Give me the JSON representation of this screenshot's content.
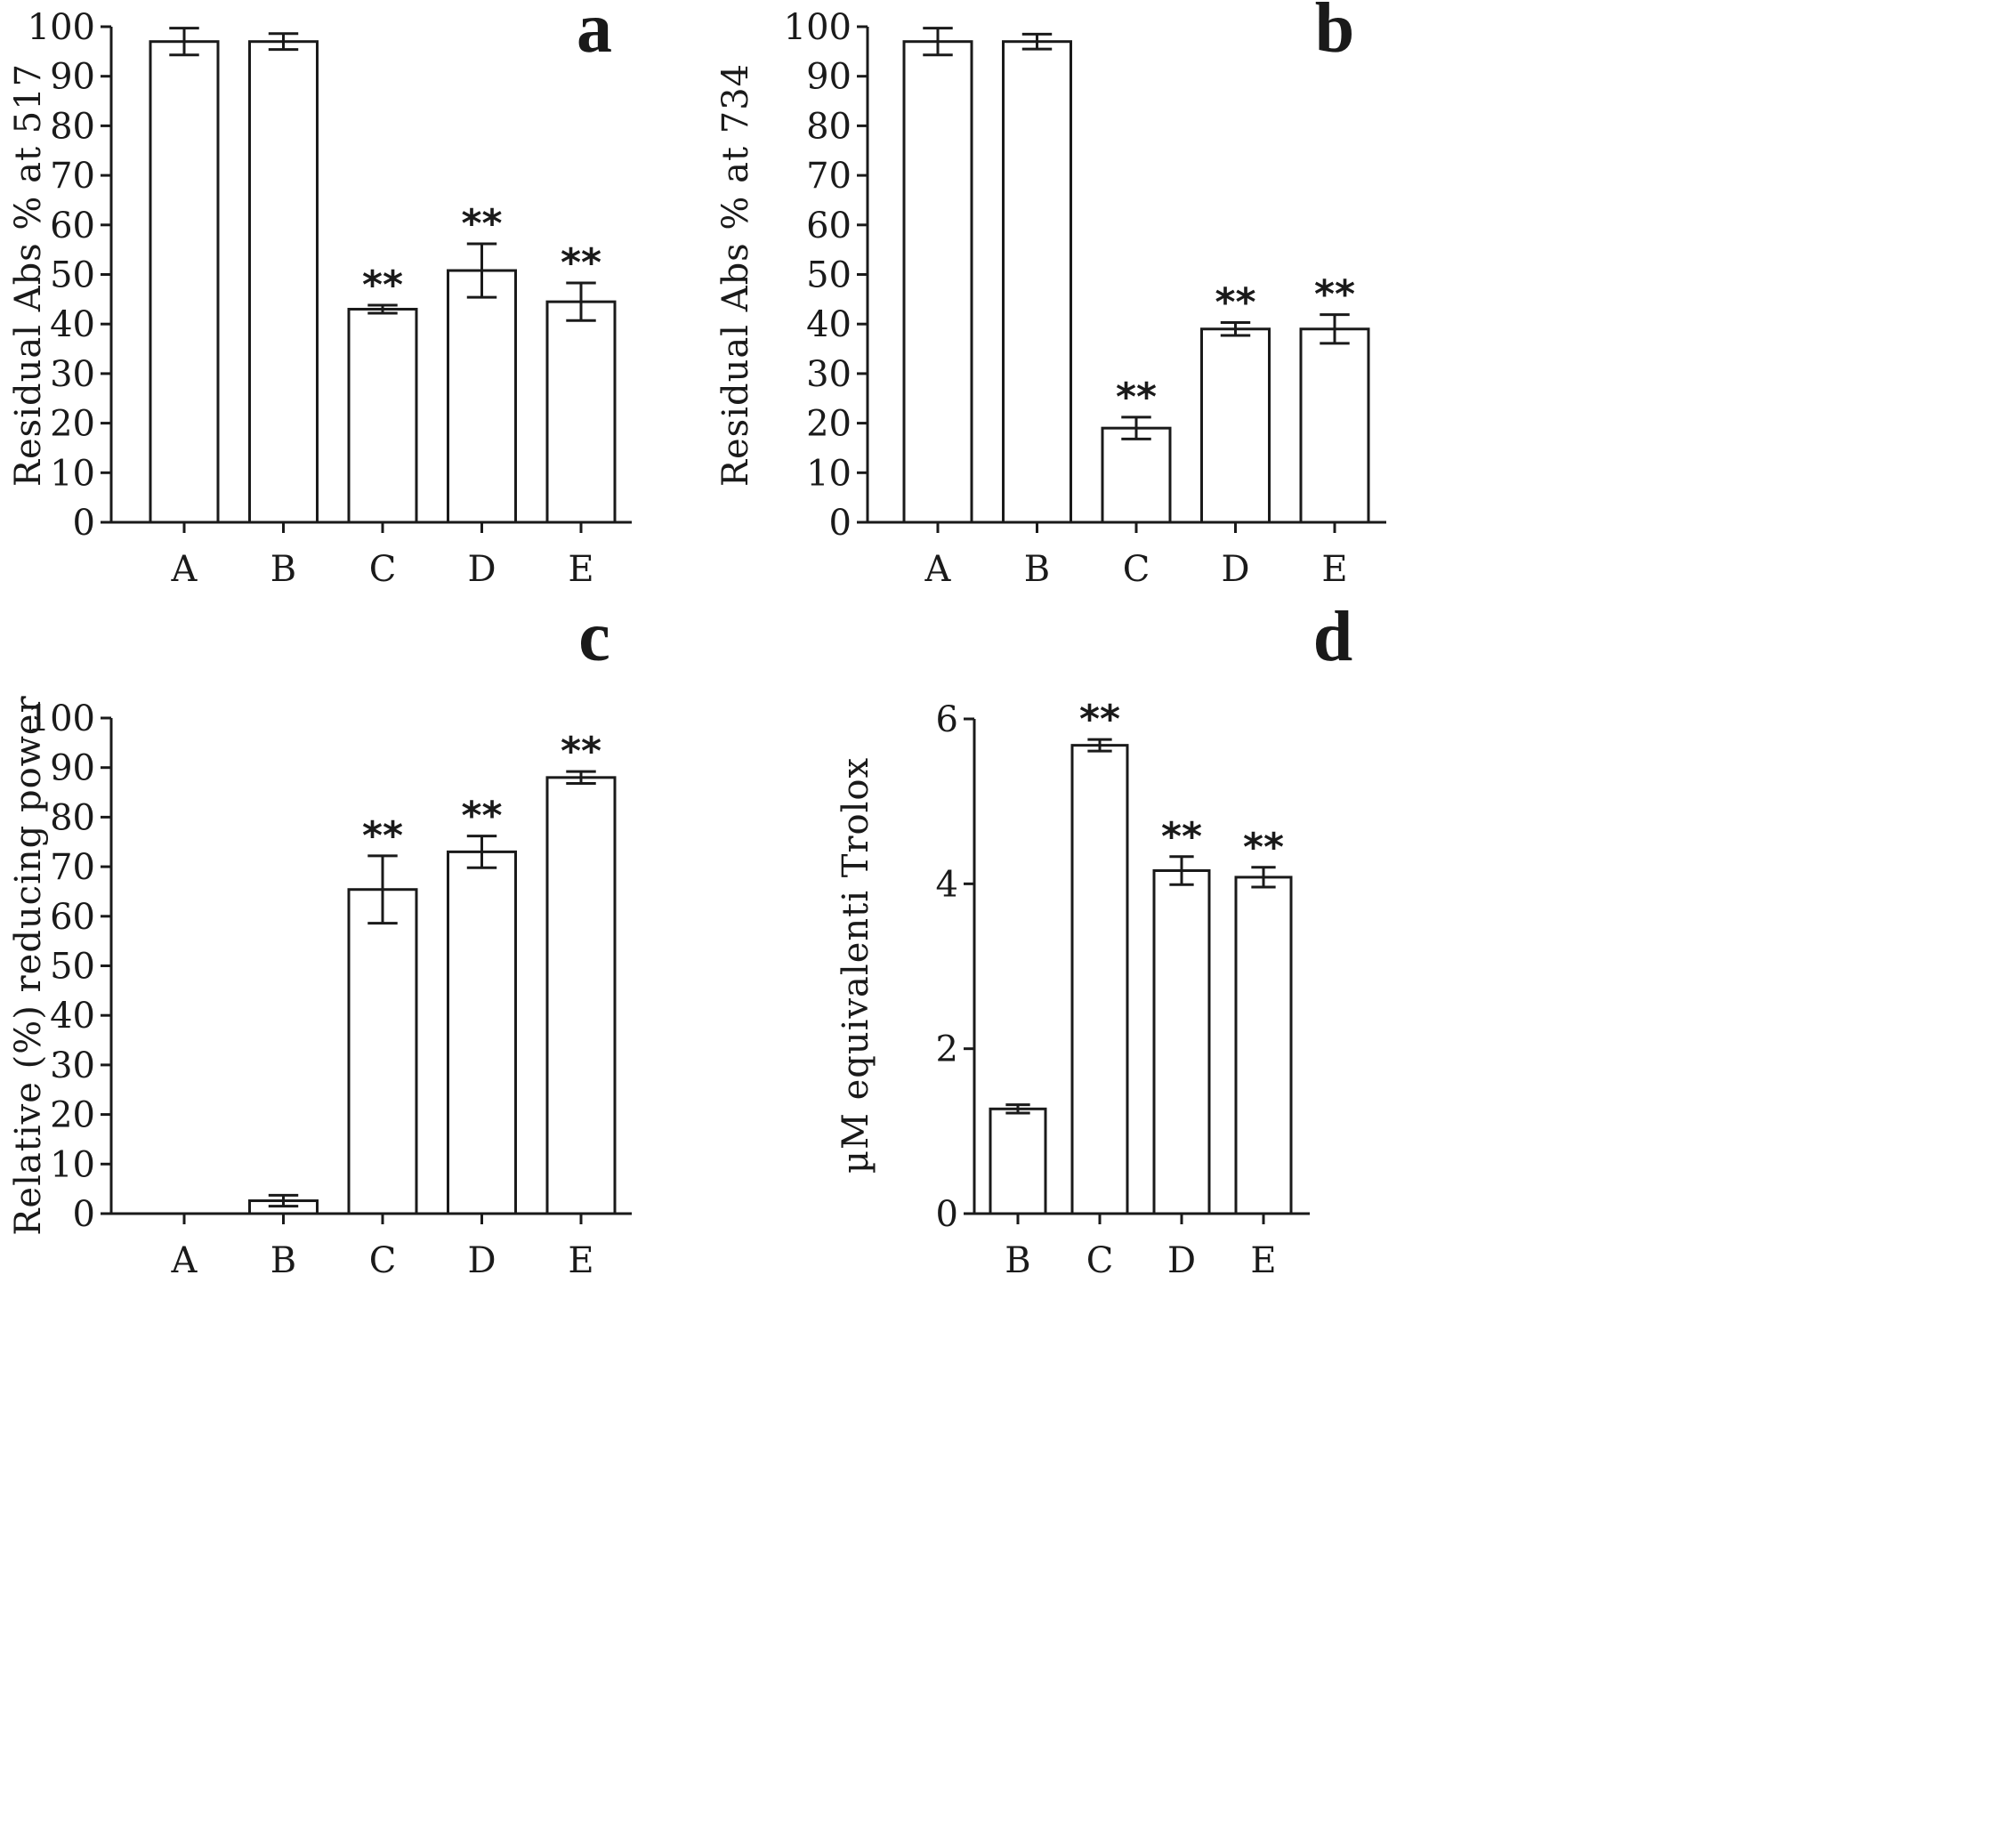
{
  "chart_data": [
    {
      "type": "bar",
      "panel": "a",
      "ylabel": "Residual Abs % at 517",
      "ylim": [
        0,
        100
      ],
      "yticks": [
        0,
        10,
        20,
        30,
        40,
        50,
        60,
        70,
        80,
        90,
        100
      ],
      "categories": [
        "A",
        "B",
        "C",
        "D",
        "E"
      ],
      "values": [
        97,
        97,
        43,
        50.8,
        44.5
      ],
      "errors": [
        2.7,
        1.6,
        0.8,
        5.4,
        3.8
      ],
      "significance": [
        "",
        "",
        "**",
        "**",
        "**"
      ]
    },
    {
      "type": "bar",
      "panel": "b",
      "ylabel": "Residual Abs % at 734",
      "ylim": [
        0,
        100
      ],
      "yticks": [
        0,
        10,
        20,
        30,
        40,
        50,
        60,
        70,
        80,
        90,
        100
      ],
      "categories": [
        "A",
        "B",
        "C",
        "D",
        "E"
      ],
      "values": [
        97,
        97,
        19,
        39,
        39
      ],
      "errors": [
        2.7,
        1.5,
        2.2,
        1.3,
        2.9
      ],
      "significance": [
        "",
        "",
        "**",
        "**",
        "**"
      ]
    },
    {
      "type": "bar",
      "panel": "c",
      "ylabel": "Relative (%) reducing power",
      "ylim": [
        0,
        100
      ],
      "yticks": [
        0,
        10,
        20,
        30,
        40,
        50,
        60,
        70,
        80,
        90,
        100
      ],
      "categories": [
        "A",
        "B",
        "C",
        "D",
        "E"
      ],
      "values": [
        0,
        2.6,
        65.4,
        73,
        88
      ],
      "errors": [
        0,
        1.1,
        6.8,
        3.2,
        1.2
      ],
      "significance": [
        "",
        "",
        "**",
        "**",
        "**"
      ]
    },
    {
      "type": "bar",
      "panel": "d",
      "ylabel": "µM equivalenti Trolox",
      "ylim": [
        0,
        6
      ],
      "yticks": [
        0,
        2,
        4,
        6
      ],
      "categories": [
        "B",
        "C",
        "D",
        "E"
      ],
      "values": [
        1.27,
        5.68,
        4.16,
        4.08
      ],
      "errors": [
        0.05,
        0.07,
        0.17,
        0.12
      ],
      "significance": [
        "",
        "**",
        "**",
        "**"
      ]
    }
  ]
}
